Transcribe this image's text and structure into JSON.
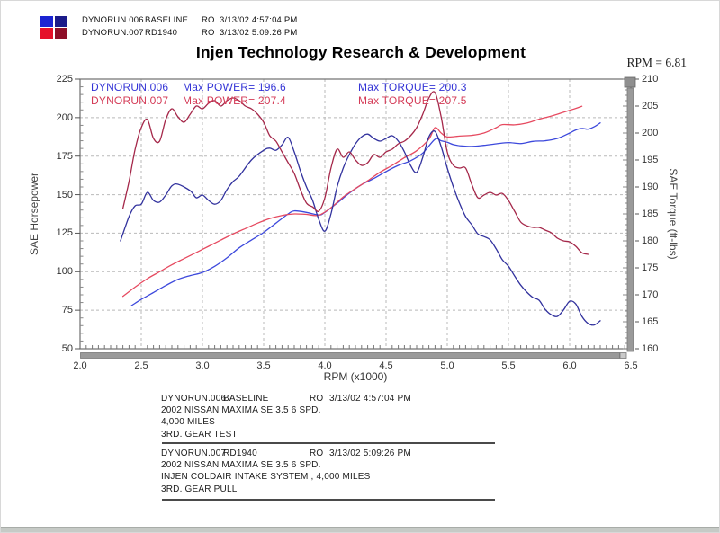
{
  "header": {
    "title": "Injen Technology Research & Development",
    "rpm_readout": "RPM = 6.81",
    "legend_rows": [
      {
        "run": "DYNORUN.006",
        "label": "BASELINE",
        "ro": "RO",
        "timestamp": "3/13/02 4:57:04 PM"
      },
      {
        "run": "DYNORUN.007",
        "label": "RD1940",
        "ro": "RO",
        "timestamp": "3/13/02 5:09:26 PM"
      }
    ],
    "swatch_colors": {
      "power_blue": "#1b24d2",
      "torque_blue": "#1b1b8a",
      "power_red": "#e51029",
      "torque_red": "#8e0f28"
    }
  },
  "chart": {
    "annotations": [
      {
        "run": "DYNORUN.006",
        "power": "Max POWER= 196.6",
        "torque": "Max TORQUE= 200.3",
        "color": "#3434d6"
      },
      {
        "run": "DYNORUN.007",
        "power": "Max POWER= 207.4",
        "torque": "Max TORQUE= 207.5",
        "color": "#d43a56"
      }
    ],
    "x_label": "RPM (x1000)",
    "y_left_label": "SAE Horsepower",
    "y_right_label": "SAE Torque (ft-lbs)"
  },
  "chart_data": {
    "type": "line",
    "title": "Injen Technology Research & Development",
    "x_axis": {
      "label": "RPM (x1000)",
      "min": 2.0,
      "max": 6.5,
      "tick_step": 0.5,
      "ticks": [
        "2.0",
        "2.5",
        "3.0",
        "3.5",
        "4.0",
        "4.5",
        "5.0",
        "5.5",
        "6.0",
        "6.5"
      ]
    },
    "y_left_axis": {
      "label": "SAE Horsepower",
      "min": 50,
      "max": 225,
      "tick_step": 25,
      "ticks": [
        "225",
        "200",
        "175",
        "150",
        "125",
        "100",
        "75",
        "50"
      ]
    },
    "y_right_axis": {
      "label": "SAE Torque (ft-lbs)",
      "min": 160,
      "max": 210,
      "tick_step": 5,
      "ticks": [
        "210",
        "205",
        "200",
        "195",
        "190",
        "185",
        "180",
        "175",
        "170",
        "165",
        "160"
      ]
    },
    "grid": "dashed",
    "legend_position": "top-left",
    "max_values": {
      "power_006": 196.6,
      "power_007": 207.4,
      "torque_006": 200.3,
      "torque_007": 207.5
    },
    "colors": {
      "power_blue": "#3d49dc",
      "torque_blue": "#32329e",
      "power_red": "#e64a60",
      "torque_red": "#a5284a",
      "grid": "#b9b9b9",
      "frame": "#6e6e6e",
      "scrollbar": "#9a9a9a",
      "scrollbar_edge": "#787878"
    },
    "series": [
      {
        "name": "DYNORUN.006 SAE Horsepower",
        "axis": "hp",
        "color_key": "power_blue",
        "points": [
          [
            2.42,
            78
          ],
          [
            2.5,
            82
          ],
          [
            2.6,
            86.5
          ],
          [
            2.7,
            91
          ],
          [
            2.8,
            95
          ],
          [
            2.9,
            97.5
          ],
          [
            3.0,
            99.5
          ],
          [
            3.1,
            103.5
          ],
          [
            3.2,
            109
          ],
          [
            3.3,
            115.5
          ],
          [
            3.4,
            120.5
          ],
          [
            3.5,
            125.5
          ],
          [
            3.6,
            131.5
          ],
          [
            3.7,
            137.5
          ],
          [
            3.75,
            139.5
          ],
          [
            3.85,
            138.5
          ],
          [
            3.95,
            136.8
          ],
          [
            4.0,
            138.5
          ],
          [
            4.1,
            144.5
          ],
          [
            4.2,
            151
          ],
          [
            4.3,
            156.5
          ],
          [
            4.4,
            160.5
          ],
          [
            4.5,
            165
          ],
          [
            4.6,
            169
          ],
          [
            4.7,
            172
          ],
          [
            4.8,
            177
          ],
          [
            4.9,
            186
          ],
          [
            4.95,
            185
          ],
          [
            5.0,
            184
          ],
          [
            5.05,
            182.5
          ],
          [
            5.1,
            181.8
          ],
          [
            5.2,
            181.3
          ],
          [
            5.3,
            182
          ],
          [
            5.4,
            183
          ],
          [
            5.5,
            183.8
          ],
          [
            5.6,
            183.2
          ],
          [
            5.7,
            184.6
          ],
          [
            5.8,
            185
          ],
          [
            5.9,
            186.5
          ],
          [
            6.0,
            190
          ],
          [
            6.05,
            192
          ],
          [
            6.1,
            193
          ],
          [
            6.15,
            192.5
          ],
          [
            6.2,
            194
          ],
          [
            6.25,
            196.6
          ]
        ]
      },
      {
        "name": "DYNORUN.007 SAE Horsepower",
        "axis": "hp",
        "color_key": "power_red",
        "points": [
          [
            2.35,
            84
          ],
          [
            2.45,
            90
          ],
          [
            2.55,
            95.5
          ],
          [
            2.65,
            100
          ],
          [
            2.75,
            104.5
          ],
          [
            2.85,
            108.5
          ],
          [
            2.95,
            112.5
          ],
          [
            3.05,
            116.5
          ],
          [
            3.15,
            120.5
          ],
          [
            3.25,
            124.5
          ],
          [
            3.35,
            128
          ],
          [
            3.45,
            131.5
          ],
          [
            3.55,
            134.5
          ],
          [
            3.65,
            136.5
          ],
          [
            3.75,
            137.5
          ],
          [
            3.85,
            137.2
          ],
          [
            3.95,
            136.6
          ],
          [
            4.05,
            141.5
          ],
          [
            4.15,
            148.5
          ],
          [
            4.25,
            154
          ],
          [
            4.35,
            159
          ],
          [
            4.45,
            164.5
          ],
          [
            4.55,
            169
          ],
          [
            4.65,
            174
          ],
          [
            4.75,
            178.5
          ],
          [
            4.85,
            186
          ],
          [
            4.9,
            193.5
          ],
          [
            4.95,
            190
          ],
          [
            5.0,
            187.5
          ],
          [
            5.1,
            188
          ],
          [
            5.2,
            188.5
          ],
          [
            5.3,
            190
          ],
          [
            5.4,
            193.5
          ],
          [
            5.45,
            195.5
          ],
          [
            5.55,
            195.3
          ],
          [
            5.65,
            196.5
          ],
          [
            5.75,
            199
          ],
          [
            5.85,
            201
          ],
          [
            5.95,
            203.5
          ],
          [
            6.05,
            206
          ],
          [
            6.1,
            207.4
          ]
        ]
      },
      {
        "name": "DYNORUN.006 SAE Torque",
        "axis": "tq",
        "color_key": "torque_blue",
        "points": [
          [
            2.33,
            180
          ],
          [
            2.4,
            184.5
          ],
          [
            2.45,
            186.5
          ],
          [
            2.5,
            186.8
          ],
          [
            2.55,
            189
          ],
          [
            2.6,
            187.5
          ],
          [
            2.65,
            187.2
          ],
          [
            2.7,
            188.5
          ],
          [
            2.75,
            190.2
          ],
          [
            2.8,
            190.5
          ],
          [
            2.9,
            189.3
          ],
          [
            2.95,
            188
          ],
          [
            3.0,
            188.5
          ],
          [
            3.05,
            187.5
          ],
          [
            3.1,
            186.8
          ],
          [
            3.15,
            187.5
          ],
          [
            3.2,
            189.5
          ],
          [
            3.25,
            191
          ],
          [
            3.3,
            192
          ],
          [
            3.4,
            195
          ],
          [
            3.5,
            196.8
          ],
          [
            3.55,
            197.2
          ],
          [
            3.6,
            196.8
          ],
          [
            3.65,
            197.8
          ],
          [
            3.7,
            199.2
          ],
          [
            3.75,
            196.5
          ],
          [
            3.8,
            193
          ],
          [
            3.85,
            190
          ],
          [
            3.9,
            187.5
          ],
          [
            3.95,
            184
          ],
          [
            4.0,
            181.8
          ],
          [
            4.05,
            185
          ],
          [
            4.1,
            190
          ],
          [
            4.15,
            193.5
          ],
          [
            4.2,
            196
          ],
          [
            4.25,
            198
          ],
          [
            4.3,
            199.3
          ],
          [
            4.35,
            199.8
          ],
          [
            4.4,
            199
          ],
          [
            4.45,
            198.5
          ],
          [
            4.5,
            199
          ],
          [
            4.55,
            199.5
          ],
          [
            4.6,
            198.5
          ],
          [
            4.65,
            196.5
          ],
          [
            4.7,
            194
          ],
          [
            4.75,
            192.7
          ],
          [
            4.8,
            195.5
          ],
          [
            4.85,
            199.3
          ],
          [
            4.9,
            200.3
          ],
          [
            4.95,
            197.5
          ],
          [
            5.0,
            193.5
          ],
          [
            5.05,
            190
          ],
          [
            5.1,
            187
          ],
          [
            5.15,
            184.5
          ],
          [
            5.2,
            183
          ],
          [
            5.25,
            181.3
          ],
          [
            5.3,
            180.8
          ],
          [
            5.35,
            180.2
          ],
          [
            5.4,
            178.5
          ],
          [
            5.45,
            176.5
          ],
          [
            5.5,
            175.3
          ],
          [
            5.55,
            173.5
          ],
          [
            5.6,
            171.8
          ],
          [
            5.65,
            170.5
          ],
          [
            5.7,
            169.5
          ],
          [
            5.75,
            169
          ],
          [
            5.8,
            167.3
          ],
          [
            5.85,
            166.3
          ],
          [
            5.9,
            166
          ],
          [
            5.95,
            167.2
          ],
          [
            6.0,
            168.8
          ],
          [
            6.05,
            168.3
          ],
          [
            6.1,
            166
          ],
          [
            6.15,
            164.7
          ],
          [
            6.2,
            164.4
          ],
          [
            6.25,
            165.2
          ]
        ]
      },
      {
        "name": "DYNORUN.007 SAE Torque",
        "axis": "tq",
        "color_key": "torque_red",
        "points": [
          [
            2.35,
            186
          ],
          [
            2.4,
            191
          ],
          [
            2.45,
            197
          ],
          [
            2.5,
            201
          ],
          [
            2.55,
            202.5
          ],
          [
            2.6,
            199
          ],
          [
            2.65,
            198.5
          ],
          [
            2.7,
            202.5
          ],
          [
            2.75,
            204.5
          ],
          [
            2.8,
            203
          ],
          [
            2.85,
            202
          ],
          [
            2.9,
            203.5
          ],
          [
            2.95,
            205
          ],
          [
            3.0,
            204.5
          ],
          [
            3.05,
            205.5
          ],
          [
            3.1,
            206
          ],
          [
            3.15,
            205
          ],
          [
            3.2,
            206
          ],
          [
            3.25,
            206.5
          ],
          [
            3.3,
            206
          ],
          [
            3.35,
            205
          ],
          [
            3.4,
            204.5
          ],
          [
            3.45,
            203.5
          ],
          [
            3.5,
            202
          ],
          [
            3.55,
            199.5
          ],
          [
            3.6,
            198.5
          ],
          [
            3.65,
            196.5
          ],
          [
            3.7,
            194.5
          ],
          [
            3.75,
            192.5
          ],
          [
            3.8,
            189.5
          ],
          [
            3.85,
            187
          ],
          [
            3.9,
            186.3
          ],
          [
            3.95,
            185.5
          ],
          [
            4.0,
            188
          ],
          [
            4.05,
            193.5
          ],
          [
            4.1,
            197
          ],
          [
            4.15,
            195.5
          ],
          [
            4.2,
            196.5
          ],
          [
            4.25,
            195
          ],
          [
            4.3,
            194
          ],
          [
            4.35,
            194.5
          ],
          [
            4.4,
            196
          ],
          [
            4.45,
            195.5
          ],
          [
            4.5,
            196.5
          ],
          [
            4.55,
            197
          ],
          [
            4.6,
            198
          ],
          [
            4.65,
            198.5
          ],
          [
            4.7,
            199.5
          ],
          [
            4.75,
            201
          ],
          [
            4.8,
            203.5
          ],
          [
            4.85,
            206.5
          ],
          [
            4.9,
            207.5
          ],
          [
            4.95,
            203
          ],
          [
            5.0,
            196.5
          ],
          [
            5.05,
            194
          ],
          [
            5.1,
            193.5
          ],
          [
            5.15,
            193.5
          ],
          [
            5.2,
            190.5
          ],
          [
            5.25,
            188
          ],
          [
            5.3,
            188.5
          ],
          [
            5.35,
            189
          ],
          [
            5.4,
            188.5
          ],
          [
            5.45,
            188.8
          ],
          [
            5.5,
            187.5
          ],
          [
            5.55,
            185.5
          ],
          [
            5.6,
            183.5
          ],
          [
            5.65,
            182.8
          ],
          [
            5.7,
            182.5
          ],
          [
            5.75,
            182.5
          ],
          [
            5.8,
            182
          ],
          [
            5.85,
            181.5
          ],
          [
            5.9,
            180.5
          ],
          [
            5.95,
            180
          ],
          [
            6.0,
            179.8
          ],
          [
            6.05,
            179
          ],
          [
            6.1,
            177.8
          ],
          [
            6.15,
            177.5
          ]
        ]
      }
    ]
  },
  "footer": {
    "blocks": [
      {
        "run": "DYNORUN.006",
        "label": "BASELINE",
        "ro": "RO",
        "timestamp": "3/13/02 4:57:04 PM",
        "lines": [
          "2002 NISSAN MAXIMA SE 3.5 6 SPD.",
          "4,000 MILES",
          "3RD. GEAR TEST"
        ]
      },
      {
        "run": "DYNORUN.007",
        "label": "RD1940",
        "ro": "RO",
        "timestamp": "3/13/02 5:09:26 PM",
        "lines": [
          "2002 NISSAN MAXIMA SE 3.5 6 SPD.",
          "INJEN COLDAIR INTAKE SYSTEM , 4,000 MILES",
          "3RD. GEAR PULL"
        ]
      }
    ]
  }
}
